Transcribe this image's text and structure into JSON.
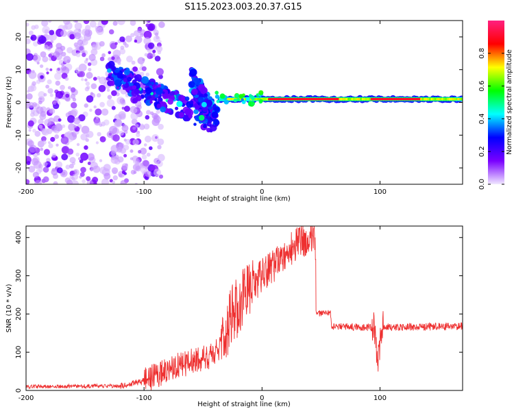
{
  "title": "S115.2023.003.20.37.G15",
  "chart_data": [
    {
      "type": "heatmap",
      "xlabel": "Height of straight line (km)",
      "ylabel": "Frequency (Hz)",
      "xlim": [
        -200,
        170
      ],
      "ylim": [
        -25,
        25
      ],
      "x_ticks": [
        -200,
        -100,
        0,
        100
      ],
      "y_ticks": [
        -20,
        -10,
        0,
        10,
        20
      ],
      "colorbar": {
        "label": "Normalized spectral amplitude",
        "range": [
          0,
          1
        ],
        "ticks": [
          0.0,
          0.2,
          0.4,
          0.6,
          0.8
        ],
        "tick_labels": [
          "0.0",
          "0.2",
          "0.4",
          "0.6",
          "0.8"
        ],
        "colormap": [
          "#f0e8ff",
          "#7a00ff",
          "#0000ff",
          "#00ffff",
          "#00ff00",
          "#ffff00",
          "#ff0000",
          "#ff2080"
        ]
      },
      "features": [
        {
          "kind": "scattered_noise",
          "x_range": [
            -200,
            -100
          ],
          "y_range": [
            -25,
            25
          ],
          "amplitude": 0.1
        },
        {
          "kind": "diagonal_band",
          "from": [
            -130,
            9
          ],
          "to": [
            -40,
            -6
          ],
          "amplitude": 0.25
        },
        {
          "kind": "secondary_band",
          "from": [
            -60,
            7
          ],
          "to": [
            -38,
            -5
          ],
          "amplitude": 0.3
        },
        {
          "kind": "carrier_line",
          "x_range": [
            -35,
            170
          ],
          "frequency": 1,
          "amplitude": 0.9
        }
      ]
    },
    {
      "type": "line",
      "xlabel": "Height of straight line (km)",
      "ylabel": "SNR (10 * v/v)",
      "xlim": [
        -200,
        170
      ],
      "ylim": [
        0,
        430
      ],
      "x_ticks": [
        -200,
        -100,
        0,
        100
      ],
      "y_ticks": [
        0,
        100,
        200,
        300,
        400
      ],
      "color": "#ee3030",
      "series": [
        {
          "profile": [
            {
              "x": -200,
              "y": 10
            },
            {
              "x": -120,
              "y": 12
            },
            {
              "x": -100,
              "y": 25
            },
            {
              "x": -80,
              "y": 55
            },
            {
              "x": -60,
              "y": 75
            },
            {
              "x": -40,
              "y": 95
            },
            {
              "x": -35,
              "y": 120
            },
            {
              "x": -25,
              "y": 200
            },
            {
              "x": -10,
              "y": 265
            },
            {
              "x": 0,
              "y": 300
            },
            {
              "x": 15,
              "y": 340
            },
            {
              "x": 30,
              "y": 385
            },
            {
              "x": 45,
              "y": 410
            },
            {
              "x": 46,
              "y": 200
            },
            {
              "x": 58,
              "y": 205
            },
            {
              "x": 59,
              "y": 168
            },
            {
              "x": 95,
              "y": 165
            },
            {
              "x": 98,
              "y": 60
            },
            {
              "x": 101,
              "y": 165
            },
            {
              "x": 170,
              "y": 168
            }
          ]
        }
      ]
    }
  ]
}
